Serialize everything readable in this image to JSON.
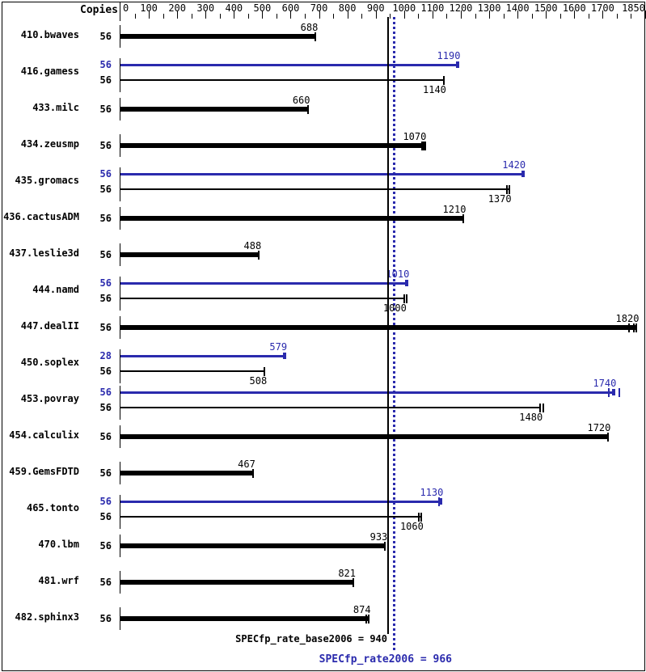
{
  "header": {
    "copies_label": "Copies"
  },
  "footer": {
    "base_label": "SPECfp_rate_base2006 = 940",
    "peak_label": "SPECfp_rate2006 = 966"
  },
  "colors": {
    "peak_blue": "#2a2aad",
    "bar_black": "#000000",
    "background": "#ffffff",
    "frame_border": "#000000"
  },
  "chart_data": {
    "type": "bar",
    "orientation": "horizontal",
    "grid": false,
    "legend": "none",
    "copies_header": "Copies",
    "x_axis": {
      "min": 0,
      "max": 1850,
      "major_tick_step": 100,
      "minor_tick_step": 50,
      "major_labels": [
        0,
        100,
        200,
        300,
        400,
        500,
        600,
        700,
        800,
        900,
        1000,
        1100,
        1200,
        1300,
        1400,
        1500,
        1600,
        1700
      ],
      "end_label": 1850
    },
    "reference_lines": [
      {
        "name": "base",
        "metric": "SPECfp_rate_base2006",
        "value": 940,
        "style": "solid",
        "color": "#000000",
        "label": "SPECfp_rate_base2006 = 940"
      },
      {
        "name": "peak",
        "metric": "SPECfp_rate2006",
        "value": 966,
        "style": "dotted",
        "color": "#2a2aad",
        "label": "SPECfp_rate2006 = 966"
      }
    ],
    "benchmarks": [
      {
        "name": "410.bwaves",
        "bars": [
          {
            "kind": "base",
            "copies": 56,
            "value": 688,
            "run_marks": [
              688
            ]
          }
        ]
      },
      {
        "name": "416.gamess",
        "bars": [
          {
            "kind": "peak",
            "copies": 56,
            "value": 1190,
            "run_marks": []
          },
          {
            "kind": "base",
            "copies": 56,
            "value": 1140,
            "run_marks": [
              1140
            ]
          }
        ]
      },
      {
        "name": "433.milc",
        "bars": [
          {
            "kind": "base",
            "copies": 56,
            "value": 660,
            "run_marks": [
              660
            ]
          }
        ]
      },
      {
        "name": "434.zeusmp",
        "bars": [
          {
            "kind": "base",
            "copies": 56,
            "value": 1070,
            "run_marks": [
              1064,
              1070,
              1076
            ]
          }
        ]
      },
      {
        "name": "435.gromacs",
        "bars": [
          {
            "kind": "peak",
            "copies": 56,
            "value": 1420,
            "run_marks": []
          },
          {
            "kind": "base",
            "copies": 56,
            "value": 1370,
            "run_marks": [
              1362,
              1370
            ]
          }
        ]
      },
      {
        "name": "436.cactusADM",
        "bars": [
          {
            "kind": "base",
            "copies": 56,
            "value": 1210,
            "run_marks": [
              1210
            ]
          }
        ]
      },
      {
        "name": "437.leslie3d",
        "bars": [
          {
            "kind": "base",
            "copies": 56,
            "value": 488,
            "run_marks": [
              488
            ]
          }
        ]
      },
      {
        "name": "444.namd",
        "bars": [
          {
            "kind": "peak",
            "copies": 56,
            "value": 1010,
            "run_marks": []
          },
          {
            "kind": "base",
            "copies": 56,
            "value": 1000,
            "run_marks": [
              1000,
              1009
            ]
          }
        ]
      },
      {
        "name": "447.dealII",
        "bars": [
          {
            "kind": "base",
            "copies": 56,
            "value": 1820,
            "run_marks": [
              1792,
              1809,
              1820
            ]
          }
        ]
      },
      {
        "name": "450.soplex",
        "bars": [
          {
            "kind": "peak",
            "copies": 28,
            "value": 579,
            "run_marks": []
          },
          {
            "kind": "base",
            "copies": 56,
            "value": 508,
            "run_marks": [
              508
            ]
          }
        ]
      },
      {
        "name": "453.povray",
        "bars": [
          {
            "kind": "peak",
            "copies": 56,
            "value": 1740,
            "run_marks": [
              1722,
              1758
            ]
          },
          {
            "kind": "base",
            "copies": 56,
            "value": 1480,
            "run_marks": [
              1480,
              1492
            ]
          }
        ]
      },
      {
        "name": "454.calculix",
        "bars": [
          {
            "kind": "base",
            "copies": 56,
            "value": 1720,
            "run_marks": [
              1720
            ]
          }
        ]
      },
      {
        "name": "459.GemsFDTD",
        "bars": [
          {
            "kind": "base",
            "copies": 56,
            "value": 467,
            "run_marks": [
              467
            ]
          }
        ]
      },
      {
        "name": "465.tonto",
        "bars": [
          {
            "kind": "peak",
            "copies": 56,
            "value": 1130,
            "run_marks": [
              1122
            ]
          },
          {
            "kind": "base",
            "copies": 56,
            "value": 1060,
            "run_marks": [
              1052,
              1060
            ]
          }
        ]
      },
      {
        "name": "470.lbm",
        "bars": [
          {
            "kind": "base",
            "copies": 56,
            "value": 933,
            "run_marks": [
              933
            ]
          }
        ]
      },
      {
        "name": "481.wrf",
        "bars": [
          {
            "kind": "base",
            "copies": 56,
            "value": 821,
            "run_marks": [
              821
            ]
          }
        ]
      },
      {
        "name": "482.sphinx3",
        "bars": [
          {
            "kind": "base",
            "copies": 56,
            "value": 874,
            "run_marks": [
              867,
              874
            ]
          }
        ]
      }
    ]
  }
}
